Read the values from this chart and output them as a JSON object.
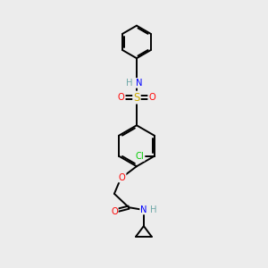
{
  "background_color": "#ececec",
  "bond_color": "#000000",
  "atom_colors": {
    "N": "#0000ff",
    "O": "#ff0000",
    "S": "#ccaa00",
    "Cl": "#00cc00",
    "C": "#000000",
    "H": "#6fa8a8"
  },
  "figsize": [
    3.0,
    3.0
  ],
  "dpi": 100
}
